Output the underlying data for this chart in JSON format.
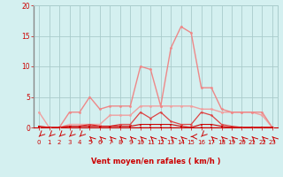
{
  "x": [
    0,
    1,
    2,
    3,
    4,
    5,
    6,
    7,
    8,
    9,
    10,
    11,
    12,
    13,
    14,
    15,
    16,
    17,
    18,
    19,
    20,
    21,
    22,
    23
  ],
  "line_rafales": [
    0.0,
    0.0,
    0.0,
    2.5,
    2.5,
    5.0,
    3.0,
    3.5,
    3.5,
    3.5,
    10.0,
    9.5,
    3.5,
    13.0,
    16.5,
    15.5,
    6.5,
    6.5,
    3.0,
    2.5,
    2.5,
    2.5,
    2.5,
    0.0
  ],
  "line_moyen": [
    2.5,
    0.0,
    0.0,
    0.5,
    0.5,
    0.5,
    0.5,
    2.0,
    2.0,
    2.0,
    3.5,
    3.5,
    3.5,
    3.5,
    3.5,
    3.5,
    3.0,
    3.0,
    2.5,
    2.5,
    2.5,
    2.5,
    2.0,
    0.0
  ],
  "line_peak2": [
    0.0,
    0.0,
    0.0,
    0.2,
    0.2,
    0.5,
    0.2,
    0.2,
    0.5,
    0.5,
    2.5,
    1.5,
    2.5,
    1.0,
    0.5,
    0.5,
    2.5,
    2.0,
    0.5,
    0.2,
    0.0,
    0.0,
    0.0,
    0.0
  ],
  "line_zero": [
    0.0,
    0.0,
    0.0,
    0.0,
    0.0,
    0.0,
    0.0,
    0.0,
    0.0,
    0.0,
    0.0,
    0.0,
    0.0,
    0.0,
    0.0,
    0.0,
    0.0,
    0.0,
    0.0,
    0.0,
    0.0,
    0.0,
    0.0,
    0.0
  ],
  "line_low": [
    0.2,
    0.0,
    0.0,
    0.2,
    0.2,
    0.2,
    0.2,
    0.2,
    0.2,
    0.2,
    0.5,
    0.5,
    0.5,
    0.5,
    0.2,
    0.0,
    0.5,
    0.5,
    0.2,
    0.0,
    0.0,
    0.0,
    0.0,
    0.0
  ],
  "background_color": "#d4f0f0",
  "grid_color": "#aacccc",
  "color_dark_red": "#cc0000",
  "color_medium_red": "#dd4444",
  "color_light_red": "#ee8888",
  "color_pink": "#f0a0a0",
  "xlabel": "Vent moyen/en rafales ( km/h )",
  "ylim": [
    0,
    20
  ],
  "xlim": [
    -0.5,
    23.5
  ],
  "yticks": [
    0,
    5,
    10,
    15,
    20
  ],
  "xticks": [
    0,
    1,
    2,
    3,
    4,
    5,
    6,
    7,
    8,
    9,
    10,
    11,
    12,
    13,
    14,
    15,
    16,
    17,
    18,
    19,
    20,
    21,
    22,
    23
  ],
  "arrow_dirs": [
    225,
    225,
    225,
    225,
    225,
    315,
    315,
    315,
    315,
    315,
    315,
    315,
    315,
    315,
    315,
    270,
    225,
    315,
    315,
    315,
    315,
    315,
    315,
    315
  ]
}
